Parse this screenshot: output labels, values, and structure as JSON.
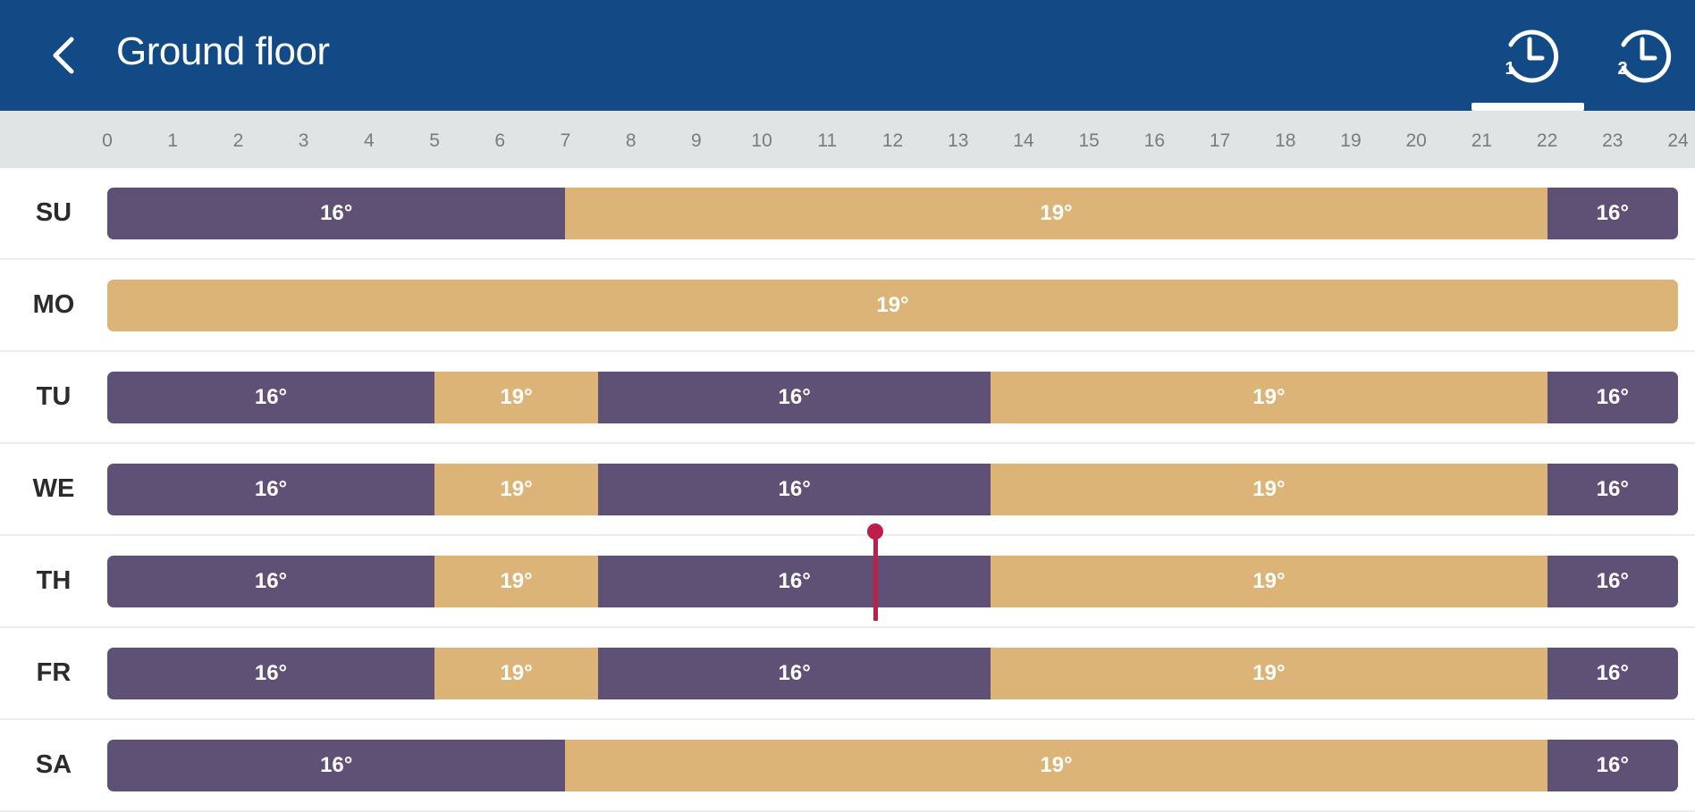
{
  "colors": {
    "header": "#124a85",
    "low": "#5f5075",
    "high": "#dcb478",
    "now_marker": "#bf1e4b"
  },
  "header": {
    "title": "Ground floor",
    "back_icon": "chevron-left-icon",
    "tabs": [
      {
        "icon": "clock-history-icon",
        "label": "1",
        "active": true
      },
      {
        "icon": "clock-history-icon",
        "label": "2",
        "active": false
      }
    ]
  },
  "axis": {
    "hours": [
      "0",
      "1",
      "2",
      "3",
      "4",
      "5",
      "6",
      "7",
      "8",
      "9",
      "10",
      "11",
      "12",
      "13",
      "14",
      "15",
      "16",
      "17",
      "18",
      "19",
      "20",
      "21",
      "22",
      "23",
      "24"
    ]
  },
  "current_time_hour": 11.75,
  "current_day": "TH",
  "days": [
    {
      "label": "SU",
      "segments": [
        {
          "from": 0,
          "to": 7,
          "temp": "16°",
          "level": "low"
        },
        {
          "from": 7,
          "to": 22,
          "temp": "19°",
          "level": "high"
        },
        {
          "from": 22,
          "to": 24,
          "temp": "16°",
          "level": "low"
        }
      ]
    },
    {
      "label": "MO",
      "segments": [
        {
          "from": 0,
          "to": 24,
          "temp": "19°",
          "level": "high"
        }
      ]
    },
    {
      "label": "TU",
      "segments": [
        {
          "from": 0,
          "to": 5,
          "temp": "16°",
          "level": "low"
        },
        {
          "from": 5,
          "to": 7.5,
          "temp": "19°",
          "level": "high"
        },
        {
          "from": 7.5,
          "to": 13.5,
          "temp": "16°",
          "level": "low"
        },
        {
          "from": 13.5,
          "to": 22,
          "temp": "19°",
          "level": "high"
        },
        {
          "from": 22,
          "to": 24,
          "temp": "16°",
          "level": "low"
        }
      ]
    },
    {
      "label": "WE",
      "segments": [
        {
          "from": 0,
          "to": 5,
          "temp": "16°",
          "level": "low"
        },
        {
          "from": 5,
          "to": 7.5,
          "temp": "19°",
          "level": "high"
        },
        {
          "from": 7.5,
          "to": 13.5,
          "temp": "16°",
          "level": "low"
        },
        {
          "from": 13.5,
          "to": 22,
          "temp": "19°",
          "level": "high"
        },
        {
          "from": 22,
          "to": 24,
          "temp": "16°",
          "level": "low"
        }
      ]
    },
    {
      "label": "TH",
      "segments": [
        {
          "from": 0,
          "to": 5,
          "temp": "16°",
          "level": "low"
        },
        {
          "from": 5,
          "to": 7.5,
          "temp": "19°",
          "level": "high"
        },
        {
          "from": 7.5,
          "to": 13.5,
          "temp": "16°",
          "level": "low"
        },
        {
          "from": 13.5,
          "to": 22,
          "temp": "19°",
          "level": "high"
        },
        {
          "from": 22,
          "to": 24,
          "temp": "16°",
          "level": "low"
        }
      ]
    },
    {
      "label": "FR",
      "segments": [
        {
          "from": 0,
          "to": 5,
          "temp": "16°",
          "level": "low"
        },
        {
          "from": 5,
          "to": 7.5,
          "temp": "19°",
          "level": "high"
        },
        {
          "from": 7.5,
          "to": 13.5,
          "temp": "16°",
          "level": "low"
        },
        {
          "from": 13.5,
          "to": 22,
          "temp": "19°",
          "level": "high"
        },
        {
          "from": 22,
          "to": 24,
          "temp": "16°",
          "level": "low"
        }
      ]
    },
    {
      "label": "SA",
      "segments": [
        {
          "from": 0,
          "to": 7,
          "temp": "16°",
          "level": "low"
        },
        {
          "from": 7,
          "to": 22,
          "temp": "19°",
          "level": "high"
        },
        {
          "from": 22,
          "to": 24,
          "temp": "16°",
          "level": "low"
        }
      ]
    }
  ]
}
